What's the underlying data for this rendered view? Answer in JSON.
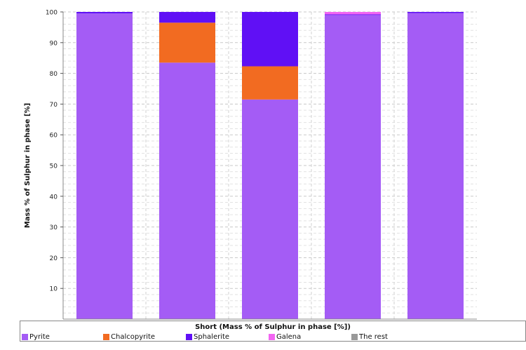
{
  "chart_data": {
    "type": "bar",
    "stacked": true,
    "ylabel": "Mass % of Sulphur in phase [%]",
    "xlabel": "Short (Mass % of Sulphur in phase [%])",
    "ylim": [
      0,
      100
    ],
    "yticks": [
      10,
      20,
      30,
      40,
      50,
      60,
      70,
      80,
      90,
      100
    ],
    "categories": [
      "",
      "",
      "",
      "",
      ""
    ],
    "grid": true,
    "legend_position": "bottom",
    "series": [
      {
        "name": "Pyrite",
        "color": "#a45cf5",
        "values": [
          99.5,
          83.5,
          71.5,
          99.0,
          99.6
        ]
      },
      {
        "name": "Chalcopyrite",
        "color": "#f26b21",
        "values": [
          0,
          13.0,
          10.8,
          0,
          0
        ]
      },
      {
        "name": "Sphalerite",
        "color": "#6010f5",
        "values": [
          0.5,
          3.5,
          17.7,
          0.2,
          0.4
        ]
      },
      {
        "name": "Galena",
        "color": "#f266f2",
        "values": [
          0,
          0,
          0,
          0.8,
          0
        ]
      },
      {
        "name": "The rest",
        "color": "#999999",
        "values": [
          0,
          0,
          0,
          0,
          0
        ]
      }
    ]
  }
}
